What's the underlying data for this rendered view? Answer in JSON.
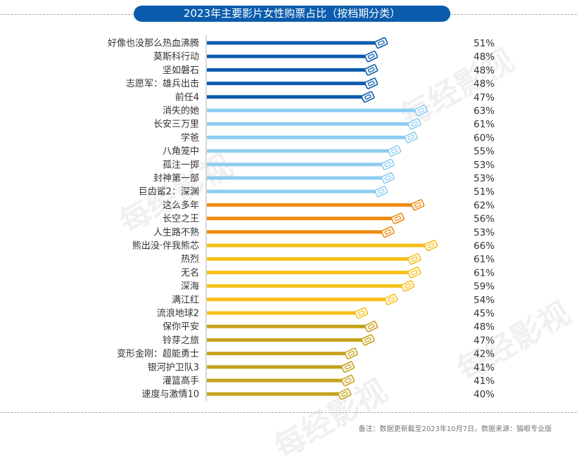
{
  "chart_data": {
    "type": "bar",
    "orientation": "horizontal",
    "title": "2023年主要影片女性购票占比（按档期分类）",
    "categories": [
      "好像也没那么热血沸腾",
      "莫斯科行动",
      "坚如磐石",
      "志愿军：雄兵出击",
      "前任4",
      "消失的她",
      "长安三万里",
      "学爸",
      "八角笼中",
      "孤注一掷",
      "封神第一部",
      "巨齿鲨2：深渊",
      "这么多年",
      "长空之王",
      "人生路不熟",
      "熊出没·伴我熊芯",
      "热烈",
      "无名",
      "深海",
      "满江红",
      "流浪地球2",
      "保你平安",
      "铃芽之旅",
      "变形金刚：超能勇士",
      "银河护卫队3",
      "灌篮高手",
      "速度与激情10"
    ],
    "values": [
      51,
      48,
      48,
      48,
      47,
      63,
      61,
      60,
      55,
      53,
      53,
      51,
      62,
      56,
      53,
      66,
      61,
      61,
      59,
      54,
      45,
      48,
      47,
      42,
      41,
      41,
      40
    ],
    "value_labels": [
      "51%",
      "48%",
      "48%",
      "48%",
      "47%",
      "63%",
      "61%",
      "60%",
      "55%",
      "53%",
      "53%",
      "51%",
      "62%",
      "56%",
      "53%",
      "66%",
      "61%",
      "61%",
      "59%",
      "54%",
      "45%",
      "48%",
      "47%",
      "42%",
      "41%",
      "41%",
      "40%"
    ],
    "group_sizes": [
      5,
      7,
      3,
      6,
      6
    ],
    "group_colors": [
      "#0b5cad",
      "#8dcdf0",
      "#ee8a12",
      "#f7bf16",
      "#c5a21a"
    ],
    "bar_end_icon": "ticket-icon",
    "xlim": [
      0,
      100
    ],
    "grid": false,
    "legend": "none"
  },
  "footnote": "备注：数据更新截至2023年10月7日，数据来源：猫眼专业版",
  "watermark": "每经影视"
}
